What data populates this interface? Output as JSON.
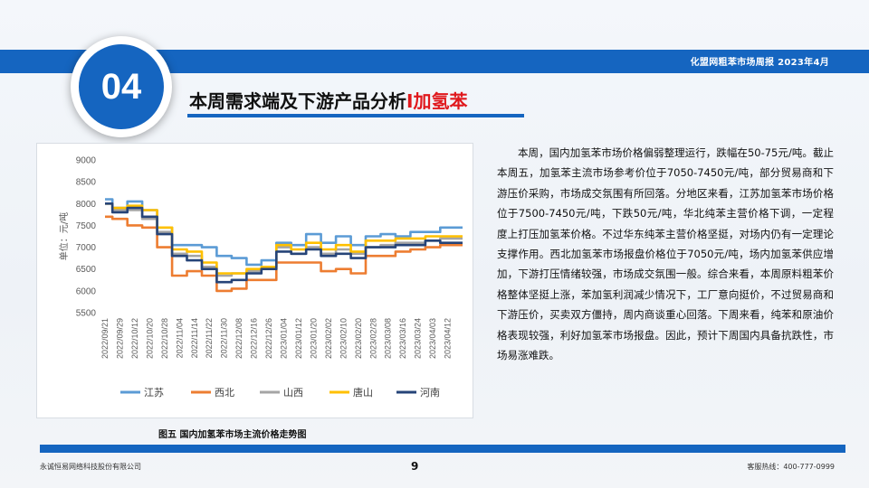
{
  "header": {
    "report_label": "化盟网粗苯市场周报   2023年4月",
    "section_number": "04",
    "section_title_main": "本周需求端及下游产品分析",
    "section_title_accent": "I加氢苯"
  },
  "caption": "图五 国内加氢苯市场主流价格走势图",
  "analysis_text": "本周，国内加氢苯市场价格偏弱整理运行，跌幅在50-75元/吨。截止本周五，加氢苯主流市场参考价位于7050-7450元/吨，部分贸易商和下游压价采购，市场成交氛围有所回落。分地区来看，江苏加氢苯市场价格位于7500-7450元/吨，下跌50元/吨，华北纯苯主营价格下调，一定程度上打压加氢苯价格。不过华东纯苯主营价格坚挺，对场内仍有一定理论支撑作用。西北加氢苯市场报盘价格位于7050元/吨，场内加氢苯供应增加，下游打压情绪较强，市场成交氛围一般。综合来看，本周原料粗苯价格整体坚挺上涨，苯加氢利润减少情况下，工厂意向挺价，不过贸易商和下游压价，买卖双方僵持，周内商谈重心回落。下周来看，纯苯和原油价格表现较强，利好加氢苯市场报盘。因此，预计下周国内具备抗跌性，市场易涨难跌。",
  "footer": {
    "company": "永诚恒易网络科技股份有限公司",
    "page_number": "9",
    "hotline": "客服热线：400-777-0999"
  },
  "chart_data": {
    "type": "line",
    "title": "",
    "xlabel": "",
    "ylabel": "单位：元/吨",
    "ylim": [
      5500,
      9000
    ],
    "yticks": [
      5500,
      6000,
      6500,
      7000,
      7500,
      8000,
      8500,
      9000
    ],
    "grid": false,
    "legend": "bottom",
    "tick_labels": [
      "2022/09/21",
      "2022/09/29",
      "2022/10/12",
      "2022/10/20",
      "2022/10/28",
      "2022/11/04",
      "2022/11/14",
      "2022/11/22",
      "2022/11/30",
      "2022/12/08",
      "2022/12/16",
      "2022/12/26",
      "2023/01/04",
      "2023/01/12",
      "2023/01/20",
      "2023/02/02",
      "2023/02/10",
      "2023/02/20",
      "2023/02/28",
      "2023/03/08",
      "2023/03/16",
      "2023/03/24",
      "2023/04/03",
      "2023/04/12"
    ],
    "x": [
      "2022/09/21",
      "2022/09/29",
      "2022/10/12",
      "2022/10/20",
      "2022/10/28",
      "2022/11/04",
      "2022/11/14",
      "2022/11/22",
      "2022/11/30",
      "2022/12/08",
      "2022/12/16",
      "2022/12/26",
      "2023/01/04",
      "2023/01/12",
      "2023/01/20",
      "2023/02/02",
      "2023/02/10",
      "2023/02/20",
      "2023/02/28",
      "2023/03/08",
      "2023/03/16",
      "2023/03/24",
      "2023/04/03",
      "2023/04/12",
      "2023/04/14"
    ],
    "series": [
      {
        "name": "江苏",
        "color": "#5b9bd5",
        "values": [
          8100,
          7900,
          8050,
          7850,
          7450,
          7050,
          7050,
          7000,
          6800,
          6750,
          6600,
          6700,
          7100,
          7050,
          7300,
          7100,
          7250,
          7050,
          7250,
          7300,
          7250,
          7350,
          7350,
          7450,
          7450
        ]
      },
      {
        "name": "西北",
        "color": "#ed7d31",
        "values": [
          7700,
          7650,
          7500,
          7450,
          7000,
          6350,
          6450,
          6350,
          6000,
          6050,
          6250,
          6250,
          6650,
          6650,
          6650,
          6450,
          6500,
          6400,
          6800,
          6800,
          6900,
          6950,
          7000,
          7050,
          7050
        ]
      },
      {
        "name": "山西",
        "color": "#a5a5a5",
        "values": [
          8000,
          7850,
          7850,
          7650,
          7350,
          6850,
          6800,
          6550,
          6350,
          6400,
          6450,
          6550,
          7000,
          6850,
          7000,
          6850,
          6950,
          6850,
          7000,
          7050,
          7100,
          7100,
          7150,
          7200,
          7200
        ]
      },
      {
        "name": "唐山",
        "color": "#ffc000",
        "values": [
          8000,
          7900,
          7950,
          7850,
          7450,
          6950,
          6900,
          6650,
          6400,
          6400,
          6500,
          6550,
          7050,
          6950,
          7100,
          6950,
          7050,
          6900,
          7150,
          7150,
          7200,
          7200,
          7250,
          7250,
          7250
        ]
      },
      {
        "name": "河南",
        "color": "#264478",
        "values": [
          8000,
          7800,
          7900,
          7700,
          7300,
          6800,
          6700,
          6500,
          6200,
          6250,
          6400,
          6500,
          6900,
          6850,
          6950,
          6800,
          6850,
          6750,
          7000,
          7000,
          7050,
          7050,
          7150,
          7100,
          7100
        ]
      }
    ]
  }
}
